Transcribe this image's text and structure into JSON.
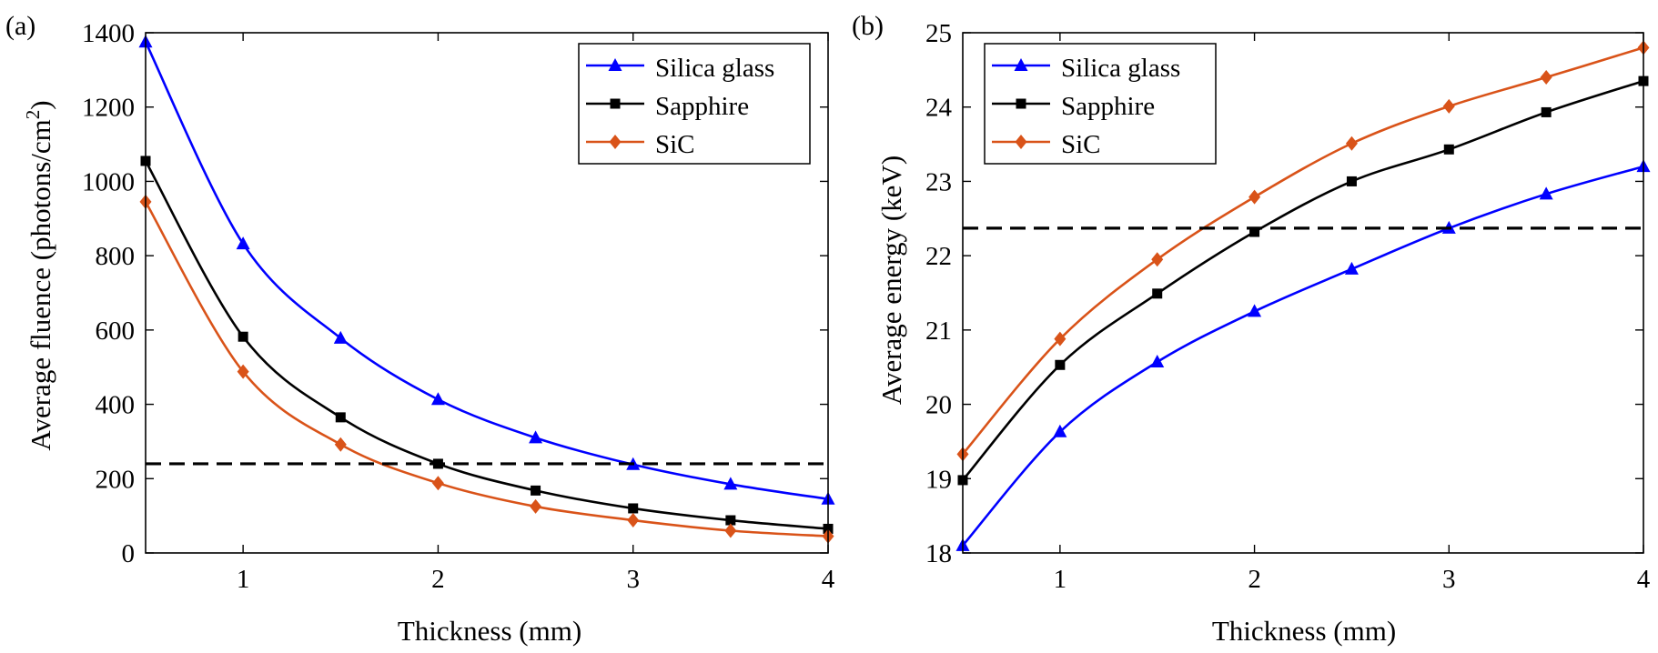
{
  "figure": {
    "panels": [
      "(a)",
      "(b)"
    ]
  },
  "chart_data": [
    {
      "type": "line",
      "panel_label": "(a)",
      "title": "",
      "xlabel": "Thickness (mm)",
      "ylabel_main": "Average fluence (photons/cm",
      "ylabel_sup": "2",
      "ylabel_close": ")",
      "xlim": [
        0.5,
        4
      ],
      "ylim": [
        0,
        1400
      ],
      "xticks": [
        1,
        2,
        3,
        4
      ],
      "yticks": [
        0,
        200,
        400,
        600,
        800,
        1000,
        1200,
        1400
      ],
      "grid": false,
      "legend_position": "top-right",
      "x": [
        0.5,
        1,
        1.5,
        2,
        2.5,
        3,
        3.5,
        4
      ],
      "series": [
        {
          "name": "Silica glass",
          "color": "#0000FF",
          "marker": "triangle",
          "values": [
            1375,
            832,
            578,
            413,
            310,
            238,
            185,
            145
          ]
        },
        {
          "name": "Sapphire",
          "color": "#000000",
          "marker": "square",
          "values": [
            1055,
            582,
            365,
            240,
            168,
            120,
            88,
            65
          ]
        },
        {
          "name": "SiC",
          "color": "#D95319",
          "marker": "diamond",
          "values": [
            945,
            488,
            292,
            188,
            125,
            88,
            60,
            45
          ]
        }
      ],
      "reference_line": {
        "y": 240,
        "style": "dashed",
        "color": "#000000"
      }
    },
    {
      "type": "line",
      "panel_label": "(b)",
      "title": "",
      "xlabel": "Thickness (mm)",
      "ylabel": "Average energy (keV)",
      "xlim": [
        0.5,
        4
      ],
      "ylim": [
        18,
        25
      ],
      "xticks": [
        1,
        2,
        3,
        4
      ],
      "yticks": [
        18,
        19,
        20,
        21,
        22,
        23,
        24,
        25
      ],
      "grid": false,
      "legend_position": "top-left",
      "x": [
        0.5,
        1,
        1.5,
        2,
        2.5,
        3,
        3.5,
        4
      ],
      "series": [
        {
          "name": "Silica glass",
          "color": "#0000FF",
          "marker": "triangle",
          "values": [
            18.1,
            19.63,
            20.57,
            21.25,
            21.82,
            22.37,
            22.83,
            23.2
          ]
        },
        {
          "name": "Sapphire",
          "color": "#000000",
          "marker": "square",
          "values": [
            18.98,
            20.53,
            21.49,
            22.32,
            23.0,
            23.43,
            23.93,
            24.35
          ]
        },
        {
          "name": "SiC",
          "color": "#D95319",
          "marker": "diamond",
          "values": [
            19.33,
            20.88,
            21.95,
            22.79,
            23.51,
            24.01,
            24.4,
            24.8
          ]
        }
      ],
      "reference_line": {
        "y": 22.37,
        "style": "dashed",
        "color": "#000000"
      }
    }
  ]
}
